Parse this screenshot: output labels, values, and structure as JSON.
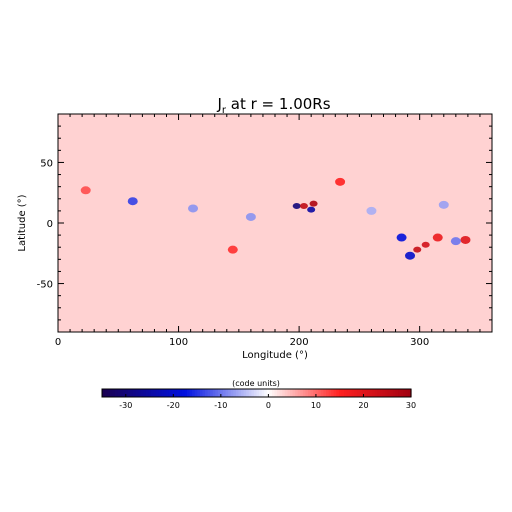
{
  "chart_data": {
    "type": "heatmap",
    "title": "J",
    "title_subscript": "r",
    "title_suffix": " at r = 1.00Rs",
    "xlabel": "Longitude (°)",
    "ylabel": "Latitude (°)",
    "xlim": [
      0,
      360
    ],
    "ylim": [
      -90,
      90
    ],
    "xticks": [
      0,
      100,
      200,
      300
    ],
    "yticks": [
      -50,
      0,
      50
    ],
    "colorbar": {
      "label": "(code units)",
      "range": [
        -35,
        30
      ],
      "ticks": [
        -30,
        -20,
        -10,
        0,
        10,
        20,
        30
      ],
      "colors": [
        "#1a0050",
        "#0010e0",
        "#ffffff",
        "#ff2020",
        "#a00010"
      ]
    },
    "background_value": 3,
    "features": [
      {
        "lon": 198,
        "lat": 14,
        "value": -30
      },
      {
        "lon": 204,
        "lat": 14,
        "value": 25
      },
      {
        "lon": 210,
        "lat": 11,
        "value": -25
      },
      {
        "lon": 212,
        "lat": 16,
        "value": 28
      },
      {
        "lon": 234,
        "lat": 34,
        "value": 15
      },
      {
        "lon": 62,
        "lat": 18,
        "value": -14
      },
      {
        "lon": 145,
        "lat": -22,
        "value": 14
      },
      {
        "lon": 285,
        "lat": -12,
        "value": -18
      },
      {
        "lon": 292,
        "lat": -27,
        "value": -20
      },
      {
        "lon": 298,
        "lat": -22,
        "value": 24
      },
      {
        "lon": 305,
        "lat": -18,
        "value": 22
      },
      {
        "lon": 315,
        "lat": -12,
        "value": 18
      },
      {
        "lon": 338,
        "lat": -14,
        "value": 20
      },
      {
        "lon": 330,
        "lat": -15,
        "value": -10
      },
      {
        "lon": 23,
        "lat": 27,
        "value": 12
      },
      {
        "lon": 160,
        "lat": 5,
        "value": -8
      },
      {
        "lon": 112,
        "lat": 12,
        "value": -8
      },
      {
        "lon": 260,
        "lat": 10,
        "value": -6
      },
      {
        "lon": 320,
        "lat": 15,
        "value": -7
      }
    ]
  }
}
